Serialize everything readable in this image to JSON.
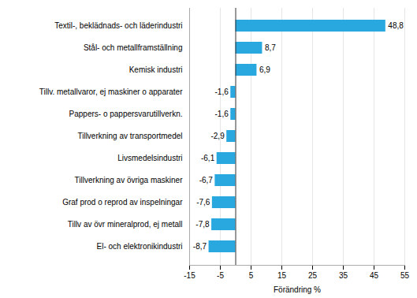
{
  "chart_data": {
    "type": "bar",
    "orientation": "horizontal",
    "categories": [
      "El- och elektronikindustri",
      "Tillv av övr mineralprod, ej metall",
      "Graf prod o reprod av inspelningar",
      "Tillverkning av övriga maskiner",
      "Livsmedelsindustri",
      "Tillverkning av transportmedel",
      "Pappers- o pappersvarutillverkn.",
      "Tillv. metallvaror, ej maskiner o apparater",
      "Kemisk industri",
      "Stål- och metallframställning",
      "Textil-, beklädnads- och läderindustri"
    ],
    "values": [
      -8.7,
      -7.8,
      -7.6,
      -6.7,
      -6.1,
      -2.9,
      -1.6,
      -1.6,
      6.9,
      8.7,
      48.8
    ],
    "value_labels": [
      "-8,7",
      "-7,8",
      "-7,6",
      "-6,7",
      "-6,1",
      "-2,9",
      "-1,6",
      "-1,6",
      "6,9",
      "8,7",
      "48,8"
    ],
    "data_labels": true,
    "color": "#29a8e0",
    "xlabel": "Förändring %",
    "xlim": [
      -15,
      55
    ],
    "xticks": [
      -15,
      -5,
      5,
      15,
      25,
      35,
      45,
      55
    ],
    "grid": true
  }
}
